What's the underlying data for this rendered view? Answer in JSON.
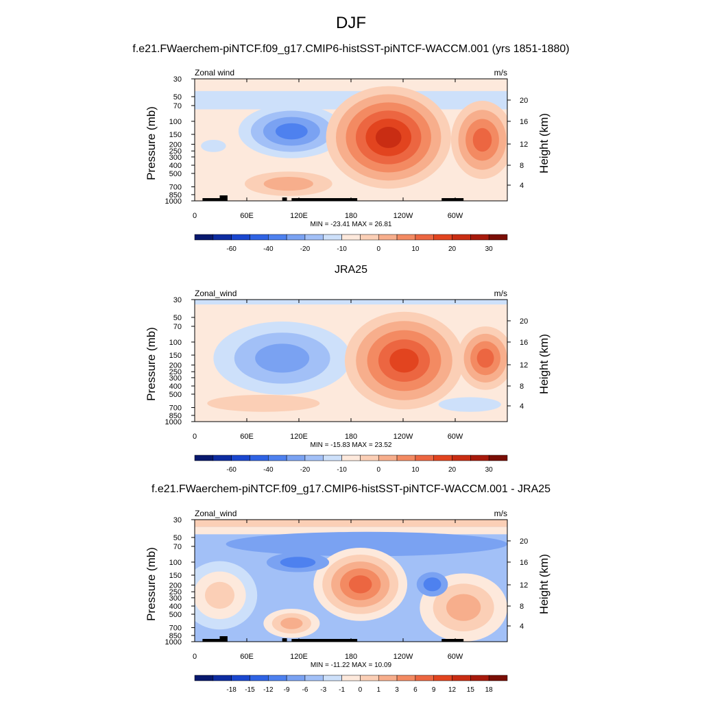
{
  "figure": {
    "title": "DJF",
    "colors": {
      "land": "#000000",
      "frame": "#000000"
    }
  },
  "chart_data": [
    {
      "type": "heatmap",
      "title": "f.e21.FWaerchem-piNTCF.f09_g17.CMIP6-histSST-piNTCF-WACCM.001 (yrs 1851-1880)",
      "left_label": "Zonal wind",
      "right_label": "m/s",
      "ylabel": "Pressure (mb)",
      "y2label": "Height (km)",
      "x_ticks": [
        "0",
        "60E",
        "120E",
        "180",
        "120W",
        "60W"
      ],
      "y_ticks": [
        "30",
        "50",
        "70",
        "100",
        "150",
        "200",
        "250",
        "300",
        "400",
        "500",
        "700",
        "850",
        "1000"
      ],
      "y2_ticks": [
        "20",
        "16",
        "12",
        "8",
        "4"
      ],
      "min_max": "MIN = -23.41  MAX =  26.81",
      "min": -23.41,
      "max": 26.81,
      "colorbar_labels": [
        "-60",
        "-40",
        "-20",
        "-10",
        "0",
        "10",
        "20",
        "30"
      ],
      "colorbar_levels": [
        -70,
        -60,
        -50,
        -40,
        -30,
        -20,
        -15,
        -10,
        -5,
        0,
        5,
        10,
        15,
        20,
        25,
        30,
        35
      ],
      "colorbar_colors": [
        "#08196e",
        "#0d2ca1",
        "#1a47cf",
        "#2f63e4",
        "#4e81ef",
        "#7aa2f2",
        "#a2c0f7",
        "#cde0fa",
        "#fde9dc",
        "#fbcfb6",
        "#f7ae8c",
        "#f38a62",
        "#ec6641",
        "#e2441f",
        "#c92d13",
        "#a71a0c",
        "#7a0e06"
      ]
    },
    {
      "type": "heatmap",
      "title": "JRA25",
      "left_label": "Zonal_wind",
      "right_label": "m/s",
      "ylabel": "Pressure (mb)",
      "y2label": "Height (km)",
      "x_ticks": [
        "0",
        "60E",
        "120E",
        "180",
        "120W",
        "60W"
      ],
      "y_ticks": [
        "30",
        "50",
        "70",
        "100",
        "150",
        "200",
        "250",
        "300",
        "400",
        "500",
        "700",
        "850",
        "1000"
      ],
      "y2_ticks": [
        "20",
        "16",
        "12",
        "8",
        "4"
      ],
      "min_max": "MIN = -15.83  MAX =  23.52",
      "min": -15.83,
      "max": 23.52,
      "colorbar_labels": [
        "-60",
        "-40",
        "-20",
        "-10",
        "0",
        "10",
        "20",
        "30"
      ],
      "colorbar_levels": [
        -70,
        -60,
        -50,
        -40,
        -30,
        -20,
        -15,
        -10,
        -5,
        0,
        5,
        10,
        15,
        20,
        25,
        30,
        35
      ],
      "colorbar_colors": [
        "#08196e",
        "#0d2ca1",
        "#1a47cf",
        "#2f63e4",
        "#4e81ef",
        "#7aa2f2",
        "#a2c0f7",
        "#cde0fa",
        "#fde9dc",
        "#fbcfb6",
        "#f7ae8c",
        "#f38a62",
        "#ec6641",
        "#e2441f",
        "#c92d13",
        "#a71a0c",
        "#7a0e06"
      ]
    },
    {
      "type": "heatmap",
      "title": "f.e21.FWaerchem-piNTCF.f09_g17.CMIP6-histSST-piNTCF-WACCM.001 - JRA25",
      "left_label": "Zonal_wind",
      "right_label": "m/s",
      "ylabel": "Pressure (mb)",
      "y2label": "Height (km)",
      "x_ticks": [
        "0",
        "60E",
        "120E",
        "180",
        "120W",
        "60W"
      ],
      "y_ticks": [
        "30",
        "50",
        "70",
        "100",
        "150",
        "200",
        "250",
        "300",
        "400",
        "500",
        "700",
        "850",
        "1000"
      ],
      "y2_ticks": [
        "20",
        "16",
        "12",
        "8",
        "4"
      ],
      "min_max": "MIN = -11.22  MAX =  10.09",
      "min": -11.22,
      "max": 10.09,
      "colorbar_labels": [
        "-18",
        "-15",
        "-12",
        "-9",
        "-6",
        "-3",
        "-1",
        "0",
        "1",
        "3",
        "6",
        "9",
        "12",
        "15",
        "18"
      ],
      "colorbar_levels": [
        -21,
        -18,
        -15,
        -12,
        -9,
        -6,
        -3,
        -1,
        0,
        1,
        3,
        6,
        9,
        12,
        15,
        18,
        21
      ],
      "colorbar_colors": [
        "#08196e",
        "#0d2ca1",
        "#1a47cf",
        "#2f63e4",
        "#4e81ef",
        "#7aa2f2",
        "#a2c0f7",
        "#cde0fa",
        "#fde9dc",
        "#fbcfb6",
        "#f7ae8c",
        "#f38a62",
        "#ec6641",
        "#e2441f",
        "#c92d13",
        "#a71a0c",
        "#7a0e06"
      ]
    }
  ]
}
